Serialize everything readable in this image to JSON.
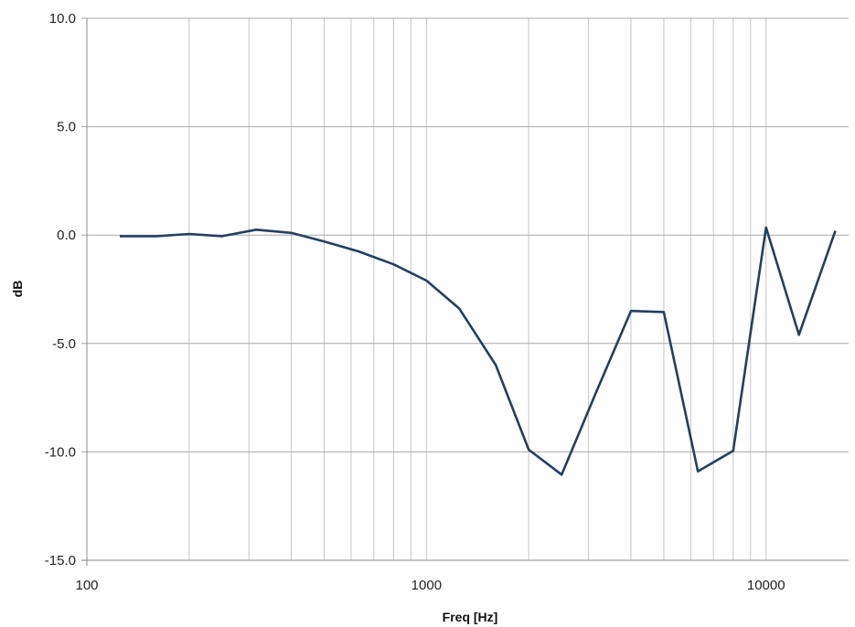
{
  "chart_data": {
    "type": "line",
    "title": "",
    "xlabel": "Freq [Hz]",
    "ylabel": "dB",
    "xscale": "log",
    "xlim": [
      100,
      17500
    ],
    "ylim": [
      -15,
      10
    ],
    "x_ticks": [
      100,
      1000,
      10000
    ],
    "x_tick_labels": [
      "100",
      "1000",
      "10000"
    ],
    "y_ticks": [
      10,
      5,
      0,
      -5,
      -10,
      -15
    ],
    "y_tick_labels": [
      "10.0",
      "5.0",
      "0.0",
      "-5.0",
      "-10.0",
      "-15.0"
    ],
    "grid": true,
    "legend": "none",
    "line_color": "#243f60",
    "series": [
      {
        "x": [
          125,
          160,
          200,
          250,
          315,
          400,
          500,
          630,
          800,
          1000,
          1250,
          1600,
          2000,
          2500,
          3150,
          4000,
          5000,
          6300,
          8000,
          10000,
          12500,
          16000
        ],
        "y": [
          -0.05,
          -0.05,
          0.05,
          -0.05,
          0.25,
          0.1,
          -0.3,
          -0.75,
          -1.35,
          -2.1,
          -3.4,
          -6.0,
          -9.9,
          -11.05,
          -7.3,
          -3.5,
          -3.55,
          -10.9,
          -9.95,
          0.35,
          -4.6,
          0.2
        ]
      }
    ]
  }
}
